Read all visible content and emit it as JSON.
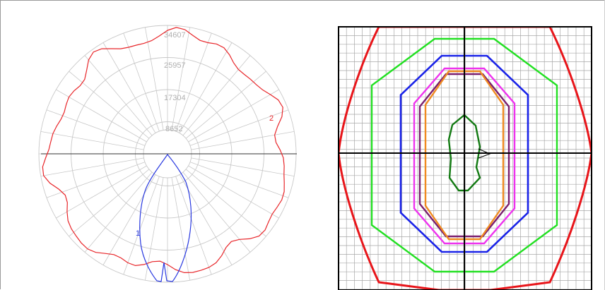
{
  "polar_plot": {
    "ring_labels": [
      "34607",
      "25957",
      "17304",
      "8652"
    ],
    "ring_values": [
      34607,
      25957,
      17304,
      8652
    ],
    "curve_labels": [
      "1",
      "2"
    ],
    "colors": {
      "curve_1": "#2a3ae0",
      "curve_2": "#e8262a",
      "grid": "#c8c8c8"
    }
  },
  "isolux_plot": {
    "colors": [
      "#e8151a",
      "#22e022",
      "#1a23e8",
      "#ee33ee",
      "#7a1e6e",
      "#f08a20",
      "#127a12"
    ],
    "grid_color": "#a8a8a8",
    "axis_color": "#000000"
  }
}
